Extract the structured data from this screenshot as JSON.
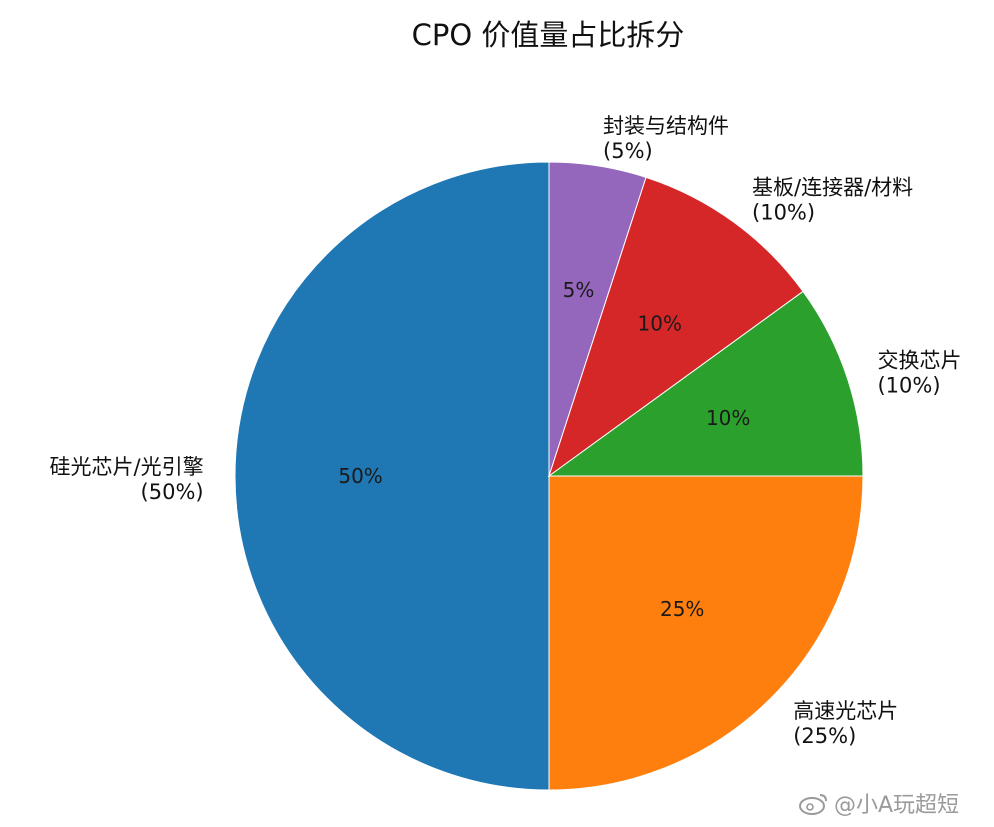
{
  "chart_data": {
    "type": "pie",
    "title": "CPO 价值量占比拆分",
    "slices": [
      {
        "label": "高速光芯片",
        "value": 25,
        "pct_label": "25%",
        "outer_pct": "(25%)",
        "color": "#ff7f0e"
      },
      {
        "label": "硅光芯片/光引擎",
        "value": 50,
        "pct_label": "50%",
        "outer_pct": "(50%)",
        "color": "#1f77b4"
      },
      {
        "label": "封装与结构件",
        "value": 5,
        "pct_label": "5%",
        "outer_pct": "(5%)",
        "color": "#9467bd"
      },
      {
        "label": "基板/连接器/材料",
        "value": 10,
        "pct_label": "10%",
        "outer_pct": "(10%)",
        "color": "#d62728"
      },
      {
        "label": "交换芯片",
        "value": 10,
        "pct_label": "10%",
        "outer_pct": "(10%)",
        "color": "#2ca02c"
      }
    ]
  },
  "watermark": {
    "text": "@小A玩超短",
    "icon": "weibo-icon"
  }
}
